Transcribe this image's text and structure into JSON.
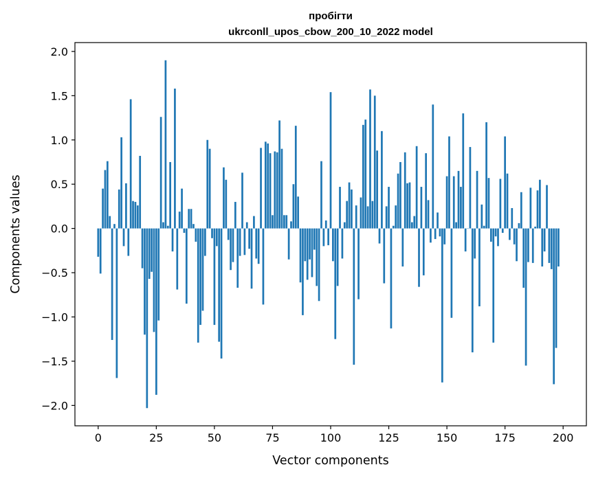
{
  "chart_data": {
    "type": "bar",
    "title": "пробігти",
    "subtitle": "ukrconll_upos_cbow_200_10_2022 model",
    "xlabel": "Vector components",
    "ylabel": "Components values",
    "xlim": [
      -10,
      210
    ],
    "ylim": [
      -2.23,
      2.1
    ],
    "xticks": [
      0,
      25,
      50,
      75,
      100,
      125,
      150,
      175,
      200
    ],
    "yticks": [
      2.0,
      1.5,
      1.0,
      0.5,
      0.0,
      -0.5,
      -1.0,
      -1.5,
      -2.0
    ],
    "ytick_labels": [
      "2.0",
      "1.5",
      "1.0",
      "0.5",
      "0.0",
      "−0.5",
      "−1.0",
      "−1.5",
      "−2.0"
    ],
    "bar_color": "#1f77b4",
    "grid": false,
    "values": [
      -0.32,
      -0.51,
      0.45,
      0.66,
      0.76,
      0.14,
      -1.26,
      0.05,
      -1.69,
      0.44,
      1.03,
      -0.2,
      0.51,
      -0.31,
      1.46,
      0.31,
      0.3,
      0.26,
      0.82,
      -0.45,
      -1.2,
      -2.03,
      -0.57,
      -0.49,
      -1.17,
      -1.88,
      -1.04,
      1.26,
      0.07,
      1.9,
      0.03,
      0.75,
      -0.26,
      1.58,
      -0.69,
      0.19,
      0.45,
      -0.05,
      -0.85,
      0.22,
      0.22,
      0.05,
      -0.15,
      -1.29,
      -1.09,
      -0.93,
      -0.31,
      1.0,
      0.9,
      -0.11,
      -1.09,
      -0.2,
      -1.28,
      -1.47,
      0.69,
      0.55,
      -0.13,
      -0.47,
      -0.38,
      0.3,
      -0.67,
      -0.31,
      0.63,
      -0.3,
      0.07,
      -0.23,
      -0.68,
      0.14,
      -0.34,
      -0.4,
      0.91,
      -0.86,
      0.98,
      0.96,
      0.85,
      0.15,
      0.87,
      0.86,
      1.22,
      0.9,
      0.15,
      0.15,
      -0.35,
      0.08,
      0.5,
      1.16,
      0.36,
      -0.61,
      -0.98,
      -0.37,
      -0.58,
      -0.35,
      -0.55,
      -0.24,
      -0.65,
      -0.82,
      0.76,
      -0.2,
      0.09,
      -0.19,
      1.54,
      -0.37,
      -1.25,
      -0.65,
      0.47,
      -0.34,
      0.07,
      0.31,
      0.52,
      0.44,
      -1.54,
      0.26,
      -0.8,
      0.35,
      1.17,
      1.23,
      0.25,
      1.57,
      0.31,
      1.5,
      0.88,
      -0.17,
      1.1,
      -0.62,
      0.25,
      0.47,
      -1.13,
      0.03,
      0.26,
      0.62,
      0.75,
      -0.43,
      0.86,
      0.51,
      0.52,
      0.07,
      0.14,
      0.93,
      -0.66,
      0.47,
      -0.53,
      0.85,
      0.32,
      -0.16,
      1.4,
      -0.12,
      0.18,
      -0.09,
      -1.74,
      -0.18,
      0.59,
      1.04,
      -1.01,
      0.59,
      0.07,
      0.65,
      0.47,
      1.3,
      -0.26,
      0.0,
      0.92,
      -1.4,
      -0.34,
      0.65,
      -0.88,
      0.27,
      0.03,
      1.2,
      0.57,
      -0.15,
      -1.29,
      -0.09,
      -0.2,
      0.56,
      -0.05,
      1.04,
      0.62,
      -0.13,
      0.23,
      -0.18,
      -0.37,
      0.06,
      0.41,
      -0.67,
      -1.55,
      -0.38,
      0.46,
      -0.39,
      0.02,
      0.43,
      0.55,
      -0.43,
      -0.26,
      0.49,
      -0.39,
      -0.46,
      -1.76,
      -1.35,
      -0.43
    ]
  }
}
